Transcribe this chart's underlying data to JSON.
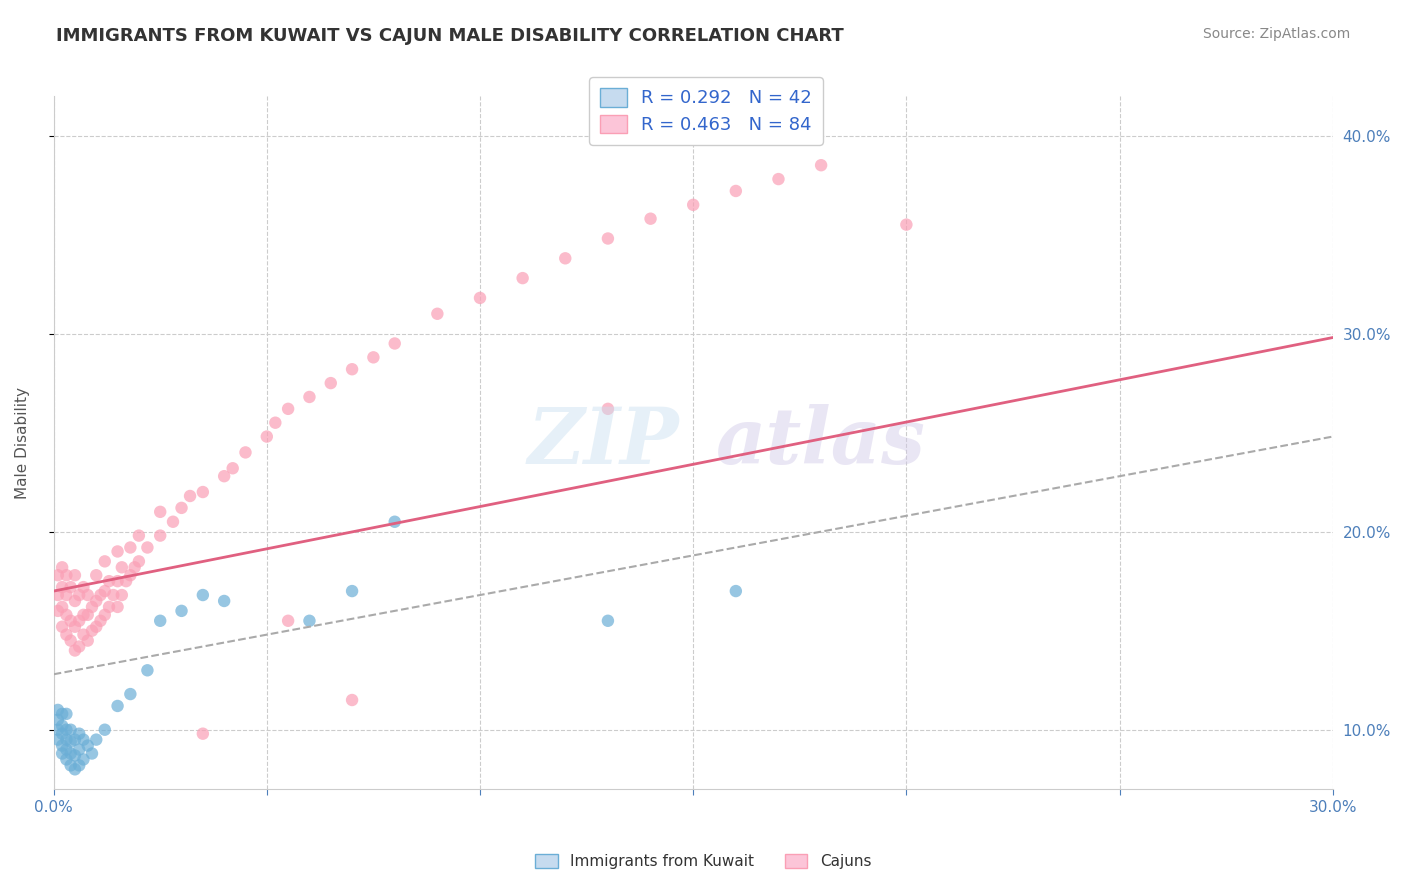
{
  "title": "IMMIGRANTS FROM KUWAIT VS CAJUN MALE DISABILITY CORRELATION CHART",
  "source_text": "Source: ZipAtlas.com",
  "ylabel": "Male Disability",
  "xlim": [
    0.0,
    0.3
  ],
  "ylim": [
    0.07,
    0.42
  ],
  "xticks": [
    0.0,
    0.05,
    0.1,
    0.15,
    0.2,
    0.25,
    0.3
  ],
  "xticklabels": [
    "0.0%",
    "",
    "",
    "",
    "",
    "",
    "30.0%"
  ],
  "yticks": [
    0.1,
    0.2,
    0.3,
    0.4
  ],
  "yticklabels": [
    "10.0%",
    "20.0%",
    "30.0%",
    "40.0%"
  ],
  "legend_r1": "R = 0.292   N = 42",
  "legend_r2": "R = 0.463   N = 84",
  "blue_color": "#6baed6",
  "pink_color": "#fa9fb5",
  "blue_fill": "#c6dbef",
  "pink_fill": "#fcc5d8",
  "background_color": "#ffffff",
  "grid_color": "#cccccc",
  "tick_color": "#4d7fba",
  "title_color": "#333333",
  "axis_color": "#cccccc",
  "pink_trend_start_x": 0.0,
  "pink_trend_start_y": 0.17,
  "pink_trend_end_x": 0.3,
  "pink_trend_end_y": 0.298,
  "blue_trend_start_x": 0.0,
  "blue_trend_start_y": 0.128,
  "blue_trend_end_x": 0.3,
  "blue_trend_end_y": 0.248,
  "blue_scatter_x": [
    0.001,
    0.001,
    0.001,
    0.001,
    0.002,
    0.002,
    0.002,
    0.002,
    0.002,
    0.003,
    0.003,
    0.003,
    0.003,
    0.003,
    0.004,
    0.004,
    0.004,
    0.004,
    0.005,
    0.005,
    0.005,
    0.006,
    0.006,
    0.006,
    0.007,
    0.007,
    0.008,
    0.009,
    0.01,
    0.012,
    0.015,
    0.018,
    0.022,
    0.025,
    0.03,
    0.035,
    0.04,
    0.06,
    0.07,
    0.08,
    0.13,
    0.16
  ],
  "blue_scatter_y": [
    0.095,
    0.1,
    0.105,
    0.11,
    0.088,
    0.092,
    0.098,
    0.102,
    0.108,
    0.085,
    0.09,
    0.095,
    0.1,
    0.108,
    0.082,
    0.088,
    0.094,
    0.1,
    0.08,
    0.087,
    0.095,
    0.082,
    0.09,
    0.098,
    0.085,
    0.095,
    0.092,
    0.088,
    0.095,
    0.1,
    0.112,
    0.118,
    0.13,
    0.155,
    0.16,
    0.168,
    0.165,
    0.155,
    0.17,
    0.205,
    0.155,
    0.17
  ],
  "pink_scatter_x": [
    0.001,
    0.001,
    0.001,
    0.002,
    0.002,
    0.002,
    0.002,
    0.003,
    0.003,
    0.003,
    0.003,
    0.004,
    0.004,
    0.004,
    0.005,
    0.005,
    0.005,
    0.005,
    0.006,
    0.006,
    0.006,
    0.007,
    0.007,
    0.007,
    0.008,
    0.008,
    0.008,
    0.009,
    0.009,
    0.01,
    0.01,
    0.01,
    0.011,
    0.011,
    0.012,
    0.012,
    0.012,
    0.013,
    0.013,
    0.014,
    0.015,
    0.015,
    0.015,
    0.016,
    0.016,
    0.017,
    0.018,
    0.018,
    0.019,
    0.02,
    0.02,
    0.022,
    0.025,
    0.025,
    0.028,
    0.03,
    0.032,
    0.035,
    0.04,
    0.042,
    0.045,
    0.05,
    0.052,
    0.055,
    0.06,
    0.065,
    0.07,
    0.075,
    0.08,
    0.09,
    0.1,
    0.11,
    0.12,
    0.13,
    0.14,
    0.15,
    0.16,
    0.17,
    0.18,
    0.2,
    0.035,
    0.055,
    0.13,
    0.07
  ],
  "pink_scatter_y": [
    0.16,
    0.168,
    0.178,
    0.152,
    0.162,
    0.172,
    0.182,
    0.148,
    0.158,
    0.168,
    0.178,
    0.145,
    0.155,
    0.172,
    0.14,
    0.152,
    0.165,
    0.178,
    0.142,
    0.155,
    0.168,
    0.148,
    0.158,
    0.172,
    0.145,
    0.158,
    0.168,
    0.15,
    0.162,
    0.152,
    0.165,
    0.178,
    0.155,
    0.168,
    0.158,
    0.17,
    0.185,
    0.162,
    0.175,
    0.168,
    0.162,
    0.175,
    0.19,
    0.168,
    0.182,
    0.175,
    0.178,
    0.192,
    0.182,
    0.185,
    0.198,
    0.192,
    0.198,
    0.21,
    0.205,
    0.212,
    0.218,
    0.22,
    0.228,
    0.232,
    0.24,
    0.248,
    0.255,
    0.262,
    0.268,
    0.275,
    0.282,
    0.288,
    0.295,
    0.31,
    0.318,
    0.328,
    0.338,
    0.348,
    0.358,
    0.365,
    0.372,
    0.378,
    0.385,
    0.355,
    0.098,
    0.155,
    0.262,
    0.115
  ]
}
